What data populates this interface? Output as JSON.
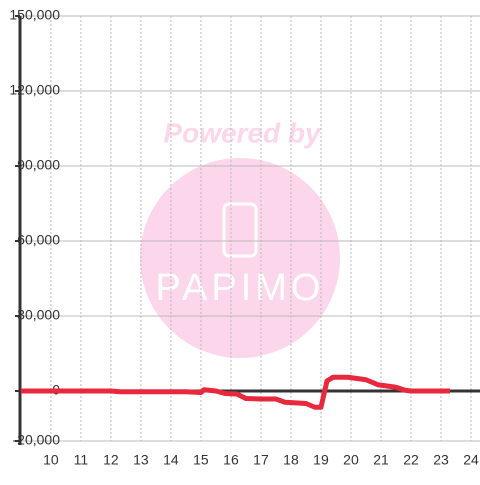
{
  "chart_data": {
    "type": "line",
    "annotations": [
      "Powered by",
      "PAPIMO"
    ],
    "x": [
      9,
      12,
      12.3,
      14.5,
      15,
      15.1,
      15.5,
      15.8,
      16.2,
      16.5,
      17,
      17.5,
      17.8,
      18.5,
      18.8,
      19.0,
      19.2,
      19.4,
      19.9,
      20.5,
      20.9,
      21.5,
      21.8,
      22,
      23.3
    ],
    "series": [
      {
        "color": "#e8283c",
        "values": [
          0,
          0,
          -300,
          -300,
          -600,
          500,
          0,
          -1000,
          -1200,
          -3000,
          -3200,
          -3200,
          -4500,
          -5000,
          -6500,
          -6500,
          4000,
          5500,
          5500,
          4500,
          2500,
          1500,
          300,
          0,
          0
        ]
      }
    ],
    "xlim": [
      8.97,
      24.3
    ],
    "xticks": [
      10,
      11,
      12,
      13,
      14,
      15,
      16,
      17,
      18,
      19,
      20,
      21,
      22,
      23,
      24
    ],
    "ylim": [
      -20000,
      150000
    ],
    "yticks": [
      {
        "value": -20000,
        "label": "-20,000"
      },
      0,
      {
        "value": 30000,
        "label": "30,000"
      },
      {
        "value": 60000,
        "label": "60,000"
      },
      {
        "value": 90000,
        "label": "90,000"
      },
      {
        "value": 120000,
        "label": "120,000"
      },
      {
        "value": 150000,
        "label": "150,000"
      }
    ],
    "grid": true
  }
}
